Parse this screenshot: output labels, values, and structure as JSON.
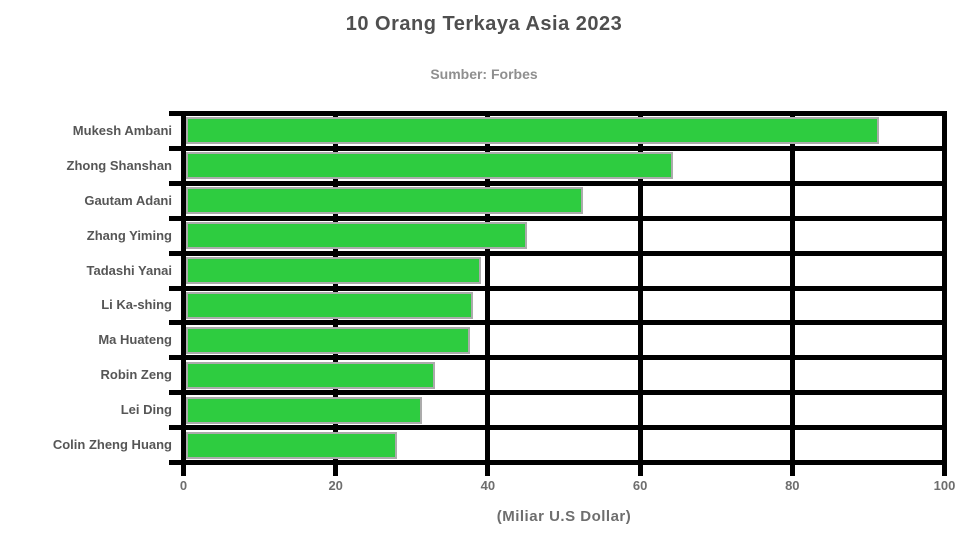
{
  "header": {
    "title": "10 Orang Terkaya Asia 2023",
    "subtitle": "Sumber: Forbes"
  },
  "chart_data": {
    "type": "bar",
    "orientation": "horizontal",
    "title": "10 Orang Terkaya Asia 2023",
    "subtitle": "Sumber: Forbes",
    "categories": [
      "Mukesh Ambani",
      "Zhong Shanshan",
      "Gautam Adani",
      "Zhang Yiming",
      "Tadashi Yanai",
      "Li Ka-shing",
      "Ma Huateng",
      "Robin Zeng",
      "Lei Ding",
      "Colin Zheng Huang"
    ],
    "values": [
      91.4,
      64.3,
      52.5,
      45.2,
      39.1,
      38,
      37.7,
      33,
      31.3,
      28.1
    ],
    "xlabel": "(Miliar U.S Dollar)",
    "ylabel": "",
    "xlim": [
      0,
      100
    ],
    "xticks": [
      0,
      20,
      40,
      60,
      80,
      100
    ],
    "grid": true,
    "legend": false,
    "colors": {
      "bar_fill": "#2ECC40",
      "bar_border": "#ABABAB",
      "grid": "#000000",
      "title": "#4F4F4F",
      "subtitle": "#8F8F8F",
      "tick_label": "#6E6E6E",
      "category_label": "#565656",
      "background": "#FFFFFF"
    }
  }
}
